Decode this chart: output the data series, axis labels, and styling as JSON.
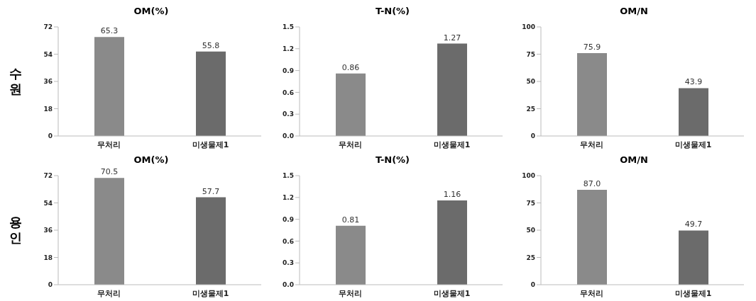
{
  "chart_data": [
    {
      "type": "bar",
      "title": "OM(%)",
      "ylabel": "수원",
      "categories": [
        "무처리",
        "미생물제1"
      ],
      "values": [
        65.3,
        55.8
      ],
      "colors": [
        "#8a8a8a",
        "#6b6b6b"
      ],
      "value_labels": [
        "65.3",
        "55.8"
      ],
      "ylim": [
        0,
        72
      ],
      "yticks": [
        0,
        18,
        36,
        54,
        72
      ],
      "grid": false
    },
    {
      "type": "bar",
      "title": "T-N(%)",
      "categories": [
        "무처리",
        "미생물제1"
      ],
      "values": [
        0.86,
        1.27
      ],
      "colors": [
        "#8a8a8a",
        "#6b6b6b"
      ],
      "value_labels": [
        "0.86",
        "1.27"
      ],
      "ylim": [
        0,
        1.5
      ],
      "yticks": [
        {
          "value": 0,
          "label": "0.0"
        },
        0.3,
        0.6,
        0.9,
        1.2,
        1.5
      ],
      "grid": false
    },
    {
      "type": "bar",
      "title": "OM/N",
      "categories": [
        "무처리",
        "미생물제1"
      ],
      "values": [
        75.9,
        43.9
      ],
      "colors": [
        "#8a8a8a",
        "#6b6b6b"
      ],
      "value_labels": [
        "75.9",
        "43.9"
      ],
      "ylim": [
        0,
        100
      ],
      "yticks": [
        0,
        25,
        50,
        75,
        100
      ],
      "grid": false
    },
    {
      "type": "bar",
      "title": "OM(%)",
      "ylabel": "용인",
      "categories": [
        "무처리",
        "미생물제1"
      ],
      "values": [
        70.5,
        57.7
      ],
      "colors": [
        "#8a8a8a",
        "#6b6b6b"
      ],
      "value_labels": [
        "70.5",
        "57.7"
      ],
      "ylim": [
        0,
        72
      ],
      "yticks": [
        0,
        18,
        36,
        54,
        72
      ],
      "grid": false
    },
    {
      "type": "bar",
      "title": "T-N(%)",
      "categories": [
        "무처리",
        "미생물제1"
      ],
      "values": [
        0.81,
        1.16
      ],
      "colors": [
        "#8a8a8a",
        "#6b6b6b"
      ],
      "value_labels": [
        "0.81",
        "1.16"
      ],
      "ylim": [
        0,
        1.5
      ],
      "yticks": [
        {
          "value": 0,
          "label": "0.0"
        },
        0.3,
        0.6,
        0.9,
        1.2,
        1.5
      ],
      "grid": false
    },
    {
      "type": "bar",
      "title": "OM/N",
      "categories": [
        "무처리",
        "미생물제1"
      ],
      "values": [
        87,
        49.7
      ],
      "colors": [
        "#8a8a8a",
        "#6b6b6b"
      ],
      "value_labels": [
        "87.0",
        "49.7"
      ],
      "ylim": [
        0,
        100
      ],
      "yticks": [
        0,
        25,
        50,
        75,
        100
      ],
      "grid": false
    }
  ]
}
